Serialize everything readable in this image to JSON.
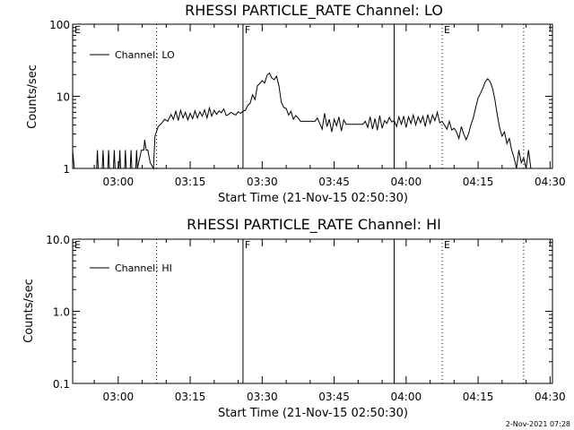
{
  "chart_data": [
    {
      "type": "line",
      "title": "RHESSI PARTICLE_RATE Channel: LO",
      "xlabel": "Start Time (21-Nov-15 02:50:30)",
      "ylabel": "Counts/sec",
      "xticks": [
        "03:00",
        "03:15",
        "03:30",
        "03:45",
        "04:00",
        "04:15",
        "04:30"
      ],
      "xlim": [
        "02:50:30",
        "04:30:30"
      ],
      "yscale": "log",
      "ylim": [
        1,
        100
      ],
      "yticks": [
        "1",
        "10",
        "100"
      ],
      "markers": [
        {
          "label": "E",
          "time": "02:50:30",
          "style": "dotted"
        },
        {
          "label": "",
          "time": "03:08:00",
          "style": "dotted"
        },
        {
          "label": "F",
          "time": "03:26:00",
          "style": "solid"
        },
        {
          "label": "",
          "time": "03:57:30",
          "style": "solid"
        },
        {
          "label": "E",
          "time": "04:07:30",
          "style": "dotted"
        },
        {
          "label": "",
          "time": "04:24:30",
          "style": "dotted"
        }
      ],
      "legend": {
        "label": "Channel: LO",
        "position": "top-left"
      },
      "series": [
        {
          "name": "Channel: LO",
          "points": [
            [
              "02:50:30",
              1.8
            ],
            [
              "02:50:50",
              1
            ],
            [
              "02:51:00",
              1
            ],
            [
              "02:55:30",
              1
            ],
            [
              "02:55:40",
              1.8
            ],
            [
              "02:55:50",
              1
            ],
            [
              "02:56:40",
              1
            ],
            [
              "02:56:50",
              1.8
            ],
            [
              "02:57:00",
              1
            ],
            [
              "02:57:50",
              1
            ],
            [
              "02:58:00",
              1.8
            ],
            [
              "02:58:10",
              1
            ],
            [
              "02:59:00",
              1
            ],
            [
              "02:59:10",
              1.8
            ],
            [
              "02:59:20",
              1
            ],
            [
              "03:00:10",
              1
            ],
            [
              "03:00:20",
              1.8
            ],
            [
              "03:00:30",
              1
            ],
            [
              "03:01:20",
              1
            ],
            [
              "03:01:30",
              1.8
            ],
            [
              "03:01:40",
              1
            ],
            [
              "03:02:30",
              1
            ],
            [
              "03:02:40",
              1.8
            ],
            [
              "03:02:50",
              1
            ],
            [
              "03:03:40",
              1
            ],
            [
              "03:03:50",
              1.8
            ],
            [
              "03:04:00",
              1
            ],
            [
              "03:04:50",
              1.8
            ],
            [
              "03:05:20",
              1.8
            ],
            [
              "03:05:30",
              2.5
            ],
            [
              "03:05:50",
              1.8
            ],
            [
              "03:06:10",
              1.8
            ],
            [
              "03:06:40",
              1.2
            ],
            [
              "03:07:20",
              1
            ],
            [
              "03:07:40",
              2.8
            ],
            [
              "03:08:20",
              3.8
            ],
            [
              "03:09:00",
              4.2
            ],
            [
              "03:09:40",
              4.8
            ],
            [
              "03:10:20",
              4.5
            ],
            [
              "03:11:00",
              5.6
            ],
            [
              "03:11:30",
              4.8
            ],
            [
              "03:12:00",
              6.2
            ],
            [
              "03:12:30",
              4.6
            ],
            [
              "03:13:00",
              6.4
            ],
            [
              "03:13:30",
              5
            ],
            [
              "03:14:00",
              6
            ],
            [
              "03:14:30",
              4.7
            ],
            [
              "03:15:00",
              5.8
            ],
            [
              "03:15:30",
              4.9
            ],
            [
              "03:16:00",
              6.3
            ],
            [
              "03:16:30",
              5
            ],
            [
              "03:17:00",
              6.1
            ],
            [
              "03:17:30",
              5.3
            ],
            [
              "03:18:00",
              6.5
            ],
            [
              "03:18:30",
              5
            ],
            [
              "03:19:00",
              6.9
            ],
            [
              "03:19:30",
              5.3
            ],
            [
              "03:20:00",
              6.4
            ],
            [
              "03:20:30",
              5.6
            ],
            [
              "03:21:00",
              6.3
            ],
            [
              "03:21:30",
              5.9
            ],
            [
              "03:22:00",
              6.7
            ],
            [
              "03:22:30",
              5.4
            ],
            [
              "03:23:00",
              5.6
            ],
            [
              "03:23:30",
              6
            ],
            [
              "03:24:00",
              5.7
            ],
            [
              "03:24:30",
              5.5
            ],
            [
              "03:25:00",
              6.1
            ],
            [
              "03:25:30",
              5.8
            ],
            [
              "03:26:00",
              6.2
            ],
            [
              "03:26:30",
              6.4
            ],
            [
              "03:27:00",
              7.5
            ],
            [
              "03:27:30",
              8
            ],
            [
              "03:28:00",
              10.5
            ],
            [
              "03:28:30",
              9
            ],
            [
              "03:29:00",
              14
            ],
            [
              "03:29:30",
              15
            ],
            [
              "03:30:00",
              16.5
            ],
            [
              "03:30:30",
              15.2
            ],
            [
              "03:31:00",
              19.5
            ],
            [
              "03:31:30",
              21
            ],
            [
              "03:32:00",
              18
            ],
            [
              "03:32:30",
              17
            ],
            [
              "03:33:00",
              19
            ],
            [
              "03:33:30",
              14
            ],
            [
              "03:34:00",
              8.2
            ],
            [
              "03:34:30",
              7
            ],
            [
              "03:35:00",
              6.8
            ],
            [
              "03:35:30",
              5.5
            ],
            [
              "03:36:00",
              6.2
            ],
            [
              "03:36:30",
              4.8
            ],
            [
              "03:37:00",
              5.4
            ],
            [
              "03:37:30",
              5
            ],
            [
              "03:38:00",
              4.5
            ],
            [
              "03:39:00",
              4.5
            ],
            [
              "03:40:00",
              4.5
            ],
            [
              "03:41:00",
              4.5
            ],
            [
              "03:41:30",
              5
            ],
            [
              "03:42:00",
              4.2
            ],
            [
              "03:42:30",
              3.5
            ],
            [
              "03:43:00",
              5.8
            ],
            [
              "03:43:30",
              3.8
            ],
            [
              "03:44:00",
              4.8
            ],
            [
              "03:44:30",
              3.2
            ],
            [
              "03:45:00",
              4.8
            ],
            [
              "03:45:30",
              3.9
            ],
            [
              "03:46:00",
              5.2
            ],
            [
              "03:46:30",
              3.3
            ],
            [
              "03:47:00",
              4.7
            ],
            [
              "03:47:30",
              4.1
            ],
            [
              "03:48:00",
              4.1
            ],
            [
              "03:49:00",
              4.1
            ],
            [
              "03:50:00",
              4.1
            ],
            [
              "03:51:00",
              4.1
            ],
            [
              "03:51:30",
              4.5
            ],
            [
              "03:52:00",
              3.7
            ],
            [
              "03:52:30",
              5.2
            ],
            [
              "03:53:00",
              3.5
            ],
            [
              "03:53:30",
              4.9
            ],
            [
              "03:54:00",
              3.4
            ],
            [
              "03:54:30",
              5.4
            ],
            [
              "03:55:00",
              3.6
            ],
            [
              "03:55:30",
              4.6
            ],
            [
              "03:56:00",
              4.2
            ],
            [
              "03:56:30",
              5.1
            ],
            [
              "03:57:00",
              4.4
            ],
            [
              "03:57:30",
              4.6
            ],
            [
              "03:58:00",
              3.8
            ],
            [
              "03:58:30",
              5.2
            ],
            [
              "03:59:00",
              4.1
            ],
            [
              "03:59:30",
              5.3
            ],
            [
              "04:00:00",
              3.7
            ],
            [
              "04:00:30",
              5.2
            ],
            [
              "04:01:00",
              4.2
            ],
            [
              "04:01:30",
              5.5
            ],
            [
              "04:02:00",
              4
            ],
            [
              "04:02:30",
              5.2
            ],
            [
              "04:03:00",
              4.3
            ],
            [
              "04:03:30",
              5.3
            ],
            [
              "04:04:00",
              3.8
            ],
            [
              "04:04:30",
              5.6
            ],
            [
              "04:05:00",
              4.2
            ],
            [
              "04:05:30",
              5.5
            ],
            [
              "04:06:00",
              4.6
            ],
            [
              "04:06:30",
              6
            ],
            [
              "04:07:00",
              4.3
            ],
            [
              "04:07:30",
              4.5
            ],
            [
              "04:08:00",
              4
            ],
            [
              "04:08:30",
              3.5
            ],
            [
              "04:09:00",
              4.5
            ],
            [
              "04:09:30",
              3.4
            ],
            [
              "04:10:00",
              3.6
            ],
            [
              "04:10:30",
              3.2
            ],
            [
              "04:11:00",
              2.6
            ],
            [
              "04:11:30",
              3.8
            ],
            [
              "04:12:00",
              3
            ],
            [
              "04:12:30",
              2.5
            ],
            [
              "04:13:00",
              3
            ],
            [
              "04:13:30",
              4
            ],
            [
              "04:14:00",
              5
            ],
            [
              "04:14:30",
              7
            ],
            [
              "04:15:00",
              9.5
            ],
            [
              "04:15:30",
              11
            ],
            [
              "04:16:00",
              13
            ],
            [
              "04:16:30",
              16
            ],
            [
              "04:17:00",
              17.5
            ],
            [
              "04:17:30",
              16
            ],
            [
              "04:18:00",
              13
            ],
            [
              "04:18:30",
              9
            ],
            [
              "04:19:00",
              5.5
            ],
            [
              "04:19:30",
              3.6
            ],
            [
              "04:20:00",
              2.8
            ],
            [
              "04:20:30",
              3.2
            ],
            [
              "04:21:00",
              2.2
            ],
            [
              "04:21:30",
              2.6
            ],
            [
              "04:22:00",
              1.8
            ],
            [
              "04:22:30",
              1.4
            ],
            [
              "04:23:00",
              1
            ],
            [
              "04:23:30",
              1.8
            ],
            [
              "04:24:00",
              1.2
            ],
            [
              "04:24:30",
              1.4
            ],
            [
              "04:25:00",
              1
            ],
            [
              "04:25:30",
              1.8
            ],
            [
              "04:26:00",
              1
            ]
          ]
        }
      ]
    },
    {
      "type": "line",
      "title": "RHESSI PARTICLE_RATE Channel: HI",
      "xlabel": "Start Time (21-Nov-15 02:50:30)",
      "ylabel": "Counts/sec",
      "xticks": [
        "03:00",
        "03:15",
        "03:30",
        "03:45",
        "04:00",
        "04:15",
        "04:30"
      ],
      "xlim": [
        "02:50:30",
        "04:30:30"
      ],
      "yscale": "log",
      "ylim": [
        0.1,
        10
      ],
      "yticks": [
        "0.1",
        "1.0",
        "10.0"
      ],
      "markers": [
        {
          "label": "E",
          "time": "02:50:30",
          "style": "dotted"
        },
        {
          "label": "",
          "time": "03:08:00",
          "style": "dotted"
        },
        {
          "label": "F",
          "time": "03:26:00",
          "style": "solid"
        },
        {
          "label": "",
          "time": "03:57:30",
          "style": "solid"
        },
        {
          "label": "E",
          "time": "04:07:30",
          "style": "dotted"
        },
        {
          "label": "",
          "time": "04:24:30",
          "style": "dotted"
        }
      ],
      "legend": {
        "label": "Channel: HI",
        "position": "top-left"
      },
      "series": [
        {
          "name": "Channel: HI",
          "points": []
        }
      ]
    }
  ],
  "footer": {
    "timestamp": "2-Nov-2021 07:28"
  }
}
